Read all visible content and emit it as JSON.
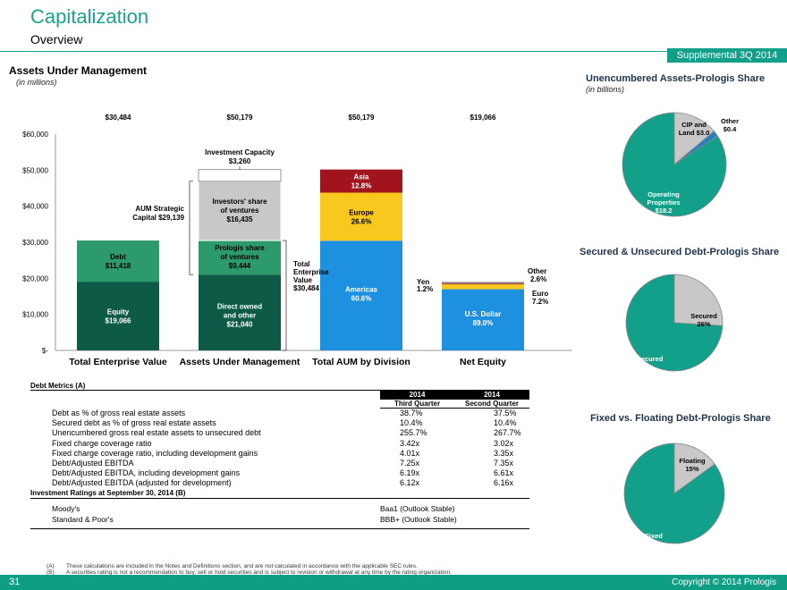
{
  "header": {
    "title": "Capitalization",
    "subtitle": "Overview",
    "badge": "Supplemental 3Q 2014"
  },
  "left_chart": {
    "heading": "Assets Under Management",
    "units": "(in millions)",
    "top_values": [
      "$30,484",
      "$50,179",
      "$50,179",
      "$19,066"
    ],
    "y_ticks": [
      "$60,000",
      "$50,000",
      "$40,000",
      "$30,000",
      "$20,000",
      "$10,000",
      "$-"
    ],
    "categories": [
      "Total Enterprise Value",
      "Assets Under Management",
      "Total AUM by Division",
      "Net Equity"
    ],
    "annotations": {
      "inv_cap_1": "Investment Capacity",
      "inv_cap_2": "$3,260",
      "aum_strat_1": "AUM Strategic",
      "aum_strat_2": "Capital $29,139",
      "tev_1": "Total",
      "tev_2": "Enterprise",
      "tev_3": "Value",
      "tev_4": "$30,484",
      "yen_1": "Yen",
      "yen_2": "1.2%",
      "other_1": "Other",
      "other_2": "2.6%",
      "euro_1": "Euro",
      "euro_2": "7.2%"
    },
    "segment_labels": {
      "debt": [
        "Debt",
        "$11,418"
      ],
      "equity": [
        "Equity",
        "$19,066"
      ],
      "investors": [
        "Investors' share",
        "of ventures",
        "$16,435"
      ],
      "prologis_share": [
        "Prologis share",
        "of ventures",
        "$9,444"
      ],
      "direct": [
        "Direct owned",
        "and other",
        "$21,040"
      ],
      "asia": [
        "Asia",
        "12.8%"
      ],
      "europe": [
        "Europe",
        "26.6%"
      ],
      "americas": [
        "Americas",
        "60.6%"
      ],
      "usd": [
        "U.S. Dollar",
        "89.0%"
      ]
    }
  },
  "chart_data": [
    {
      "type": "bar",
      "stacked": true,
      "title": "Assets Under Management",
      "ylabel": "",
      "ylim": [
        0,
        60000
      ],
      "categories": [
        "Total Enterprise Value",
        "Assets Under Management",
        "Total AUM by Division",
        "Net Equity"
      ],
      "series": [
        {
          "name": "Equity",
          "values": [
            19066,
            null,
            null,
            null
          ]
        },
        {
          "name": "Debt",
          "values": [
            11418,
            null,
            null,
            null
          ]
        },
        {
          "name": "Direct owned and other",
          "values": [
            null,
            21040,
            null,
            null
          ]
        },
        {
          "name": "Prologis share of ventures",
          "values": [
            null,
            9444,
            null,
            null
          ]
        },
        {
          "name": "Investors' share of ventures",
          "values": [
            null,
            16435,
            null,
            null
          ]
        },
        {
          "name": "Investment Capacity",
          "values": [
            null,
            3260,
            null,
            null
          ]
        },
        {
          "name": "Americas",
          "values": [
            null,
            null,
            30408,
            null
          ]
        },
        {
          "name": "Europe",
          "values": [
            null,
            null,
            13348,
            null
          ]
        },
        {
          "name": "Asia",
          "values": [
            null,
            null,
            6423,
            null
          ]
        },
        {
          "name": "U.S. Dollar",
          "values": [
            null,
            null,
            null,
            16969
          ]
        },
        {
          "name": "Euro",
          "values": [
            null,
            null,
            null,
            1373
          ]
        },
        {
          "name": "Yen",
          "values": [
            null,
            null,
            null,
            229
          ]
        },
        {
          "name": "Other",
          "values": [
            null,
            null,
            null,
            496
          ]
        }
      ],
      "colors": {
        "equity": "#0d5b47",
        "debt": "#2c9a6a",
        "direct": "#0d5b47",
        "prologis": "#2c9a6a",
        "investors": "#c8c8c8",
        "capacity": "#ffffff",
        "americas": "#1e90e0",
        "europe": "#f9c81e",
        "asia": "#a1141e",
        "usd": "#1e90e0",
        "euro": "#f9c81e",
        "yen": "#a1141e",
        "other": "#a0a0a0"
      }
    },
    {
      "type": "pie",
      "title": "Unencumbered Assets-Prologis Share",
      "units": "(in billions)",
      "labels": [
        "Operating Properties",
        "CIP and Land",
        "Other"
      ],
      "values": [
        18.2,
        3.0,
        0.4
      ]
    },
    {
      "type": "pie",
      "title": "Secured & Unsecured Debt-Prologis Share",
      "labels": [
        "Unsecured",
        "Secured"
      ],
      "values": [
        74,
        26
      ]
    },
    {
      "type": "pie",
      "title": "Fixed vs. Floating Debt-Prologis Share",
      "labels": [
        "Fixed",
        "Floating"
      ],
      "values": [
        85,
        15
      ]
    }
  ],
  "pies": {
    "unenc": {
      "op": [
        "Operating",
        "Properties",
        "$18.2"
      ],
      "cip": [
        "CIP and",
        "Land $3.0"
      ],
      "other": [
        "Other",
        "$0.4"
      ]
    },
    "secured": {
      "unsecured": [
        "Unsecured",
        "74%"
      ],
      "secured": [
        "Secured",
        "26%"
      ]
    },
    "fixed": {
      "fixed": [
        "Fixed",
        "85%"
      ],
      "floating": [
        "Floating",
        "15%"
      ]
    },
    "colors": {
      "teal": "#13a08a",
      "gray": "#c8c8c8",
      "blue": "#2a7fc4"
    }
  },
  "debt_metrics": {
    "heading": "Debt Metrics (A)",
    "col_years": [
      "2014",
      "2014"
    ],
    "col_quarters": [
      "Third Quarter",
      "Second Quarter"
    ],
    "rows": [
      {
        "label": "Debt as % of gross real estate assets",
        "q3": "38.7%",
        "q2": "37.5%"
      },
      {
        "label": "Secured debt as % of gross real estate assets",
        "q3": "10.4%",
        "q2": "10.4%"
      },
      {
        "label": "Unencumbered gross real estate assets to unsecured debt",
        "q3": "255.7%",
        "q2": "267.7%"
      },
      {
        "label": "Fixed charge coverage ratio",
        "q3": "3.42x",
        "q2": "3.02x"
      },
      {
        "label": "Fixed charge coverage ratio, including development gains",
        "q3": "4.01x",
        "q2": "3.35x"
      },
      {
        "label": "Debt/Adjusted EBITDA",
        "q3": "7.25x",
        "q2": "7.35x"
      },
      {
        "label": "Debt/Adjusted EBITDA, including development gains",
        "q3": "6.19x",
        "q2": "6.61x"
      },
      {
        "label": "Debt/Adjusted EBITDA (adjusted for development)",
        "q3": "6.12x",
        "q2": "6.16x"
      }
    ]
  },
  "ratings": {
    "heading": "Investment Ratings at September 30, 2014 (B)",
    "rows": [
      {
        "agency": "Moody's",
        "rating": "Baa1 (Outlook Stable)"
      },
      {
        "agency": "Standard & Poor's",
        "rating": "BBB+ (Outlook Stable)"
      }
    ]
  },
  "footnotes": {
    "a_mark": "(A)",
    "a": "These calculations are included in the Notes and Definitions section, and are not calculated in accordance with the applicable SEC rules.",
    "b_mark": "(B)",
    "b": "A securities rating is not a recommendation to buy, sell or hold securities and is subject to revision or withdrawal at any time by the rating organization."
  },
  "footer": {
    "page": "31",
    "copyright": "Copyright © 2014 Prologis"
  }
}
